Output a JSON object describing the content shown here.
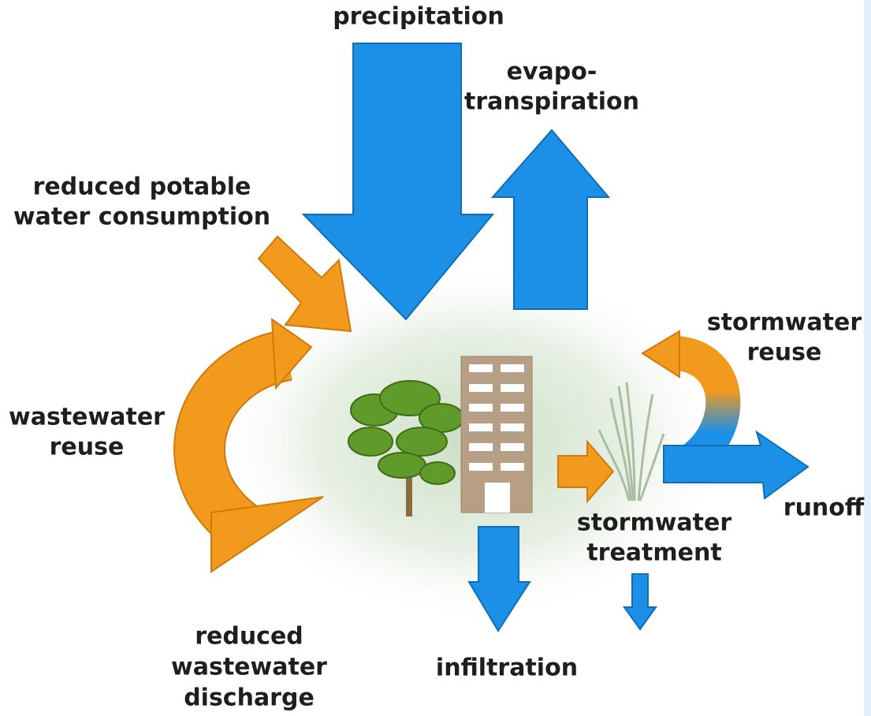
{
  "labels": [
    {
      "lines": [
        "precipitation"
      ]
    },
    {
      "lines": [
        "evapo-",
        "transpiration"
      ]
    },
    {
      "lines": [
        "reduced potable",
        "water consumption"
      ]
    },
    {
      "lines": [
        "wastewater",
        "reuse"
      ]
    },
    {
      "lines": [
        "reduced",
        "wastewater",
        "discharge"
      ]
    },
    {
      "lines": [
        "infiltration"
      ]
    },
    {
      "lines": [
        "stormwater",
        "treatment"
      ]
    },
    {
      "lines": [
        "stormwater",
        "reuse"
      ]
    },
    {
      "lines": [
        "runoff"
      ]
    }
  ]
}
